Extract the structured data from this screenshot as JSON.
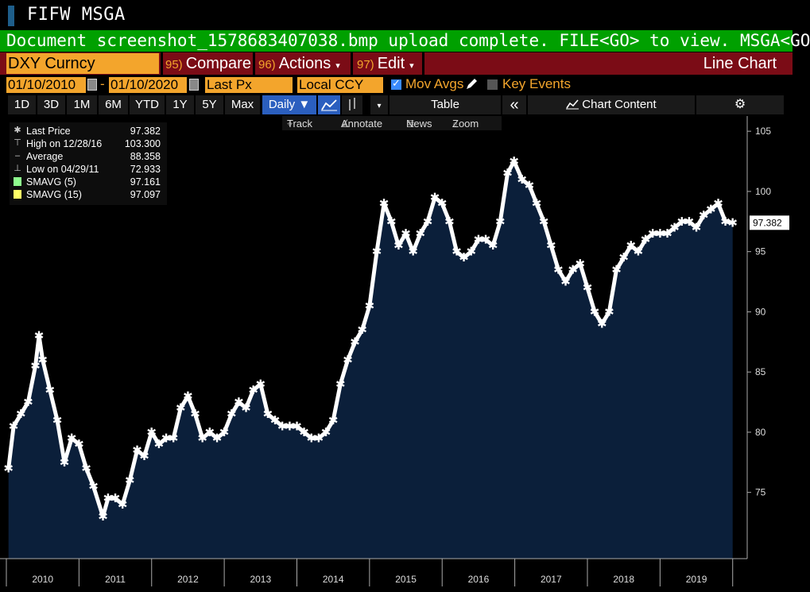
{
  "header": {
    "title": "FIFW MSGA",
    "message": "Document screenshot_1578683407038.bmp upload complete. FILE<GO> to view. MSGA<GO"
  },
  "command_bar": {
    "ticker": "DXY Curncy",
    "compare": {
      "num": "95)",
      "label": "Compare"
    },
    "actions": {
      "num": "96)",
      "label": "Actions",
      "caret": "▾"
    },
    "edit": {
      "num": "97)",
      "label": "Edit",
      "caret": "▾"
    },
    "chart_type": "Line Chart"
  },
  "options": {
    "start_date": "01/10/2010",
    "end_date": "01/10/2020",
    "dash": "-",
    "field": "Last Px",
    "currency": "Local CCY",
    "mov_avgs": "Mov Avgs",
    "key_events": "Key Events"
  },
  "range_buttons": [
    "1D",
    "3D",
    "1M",
    "6M",
    "YTD",
    "1Y",
    "5Y",
    "Max"
  ],
  "frequency": "Daily ▼",
  "toolbar": {
    "table": "Table",
    "collapse": "«",
    "chart_content": "Chart Content",
    "track": "Track",
    "annotate": "Annotate",
    "news": "News",
    "zoom": "Zoom"
  },
  "legend": [
    {
      "label": "Last Price",
      "value": "97.382"
    },
    {
      "label": "High on 12/28/16",
      "value": "103.300"
    },
    {
      "label": "Average",
      "value": "88.358"
    },
    {
      "label": "Low on 04/29/11",
      "value": "72.933"
    },
    {
      "label": "SMAVG (5)",
      "value": "97.161"
    },
    {
      "label": "SMAVG (15)",
      "value": "97.097"
    }
  ],
  "colors": {
    "accent_orange": "#f3a52c",
    "message_green": "#00a000",
    "command_red": "#7b0c16",
    "area_fill": "#0b1f3a",
    "price_line": "#ffffff",
    "smavg5": "#8fff8f",
    "smavg15": "#ffff66"
  },
  "chart_data": {
    "type": "area",
    "title": "",
    "xlabel": "",
    "ylabel": "",
    "x_ticks": [
      "2010",
      "2011",
      "2012",
      "2013",
      "2014",
      "2015",
      "2016",
      "2017",
      "2018",
      "2019"
    ],
    "y_ticks": [
      75,
      80,
      85,
      90,
      95,
      100,
      105
    ],
    "ylim": [
      69.5,
      106
    ],
    "last_value_label": "97.382",
    "series": [
      {
        "name": "Last Price",
        "x": [
          2010.03,
          2010.1,
          2010.2,
          2010.3,
          2010.4,
          2010.45,
          2010.5,
          2010.6,
          2010.7,
          2010.8,
          2010.9,
          2011.0,
          2011.1,
          2011.2,
          2011.33,
          2011.4,
          2011.5,
          2011.6,
          2011.7,
          2011.8,
          2011.9,
          2012.0,
          2012.1,
          2012.2,
          2012.3,
          2012.4,
          2012.5,
          2012.6,
          2012.7,
          2012.8,
          2012.9,
          2013.0,
          2013.1,
          2013.2,
          2013.3,
          2013.4,
          2013.5,
          2013.6,
          2013.7,
          2013.8,
          2013.9,
          2014.0,
          2014.1,
          2014.2,
          2014.3,
          2014.4,
          2014.5,
          2014.6,
          2014.7,
          2014.8,
          2014.9,
          2015.0,
          2015.1,
          2015.2,
          2015.3,
          2015.4,
          2015.5,
          2015.6,
          2015.7,
          2015.8,
          2015.9,
          2016.0,
          2016.1,
          2016.2,
          2016.3,
          2016.4,
          2016.5,
          2016.6,
          2016.7,
          2016.8,
          2016.9,
          2016.99,
          2017.1,
          2017.2,
          2017.3,
          2017.4,
          2017.5,
          2017.6,
          2017.7,
          2017.8,
          2017.9,
          2018.0,
          2018.1,
          2018.2,
          2018.3,
          2018.4,
          2018.5,
          2018.6,
          2018.7,
          2018.8,
          2018.9,
          2019.0,
          2019.1,
          2019.2,
          2019.3,
          2019.4,
          2019.5,
          2019.6,
          2019.7,
          2019.8,
          2019.9,
          2020.0
        ],
        "y": [
          77.0,
          80.5,
          81.5,
          82.5,
          85.5,
          88.0,
          86.0,
          83.5,
          81.0,
          77.5,
          79.5,
          79.0,
          77.0,
          75.5,
          73.0,
          74.5,
          74.5,
          74.0,
          76.0,
          78.5,
          78.0,
          80.0,
          79.0,
          79.5,
          79.5,
          82.0,
          83.0,
          81.5,
          79.5,
          80.0,
          79.5,
          80.0,
          81.5,
          82.5,
          82.0,
          83.5,
          84.0,
          81.5,
          81.0,
          80.5,
          80.5,
          80.5,
          80.0,
          79.5,
          79.5,
          80.0,
          81.0,
          84.0,
          86.0,
          87.5,
          88.5,
          90.5,
          95.0,
          99.0,
          97.5,
          95.5,
          96.5,
          95.0,
          96.5,
          97.5,
          99.5,
          99.0,
          97.5,
          95.0,
          94.5,
          95.0,
          96.0,
          96.0,
          95.5,
          97.5,
          101.5,
          102.5,
          101.0,
          100.5,
          99.0,
          97.5,
          95.5,
          93.5,
          92.5,
          93.5,
          94.0,
          92.0,
          90.0,
          89.0,
          90.0,
          93.5,
          94.5,
          95.5,
          95.0,
          96.0,
          96.5,
          96.5,
          96.5,
          97.0,
          97.5,
          97.5,
          97.0,
          98.0,
          98.5,
          99.0,
          97.5,
          97.4
        ]
      }
    ],
    "grid": false,
    "legend_position": "top-left"
  }
}
